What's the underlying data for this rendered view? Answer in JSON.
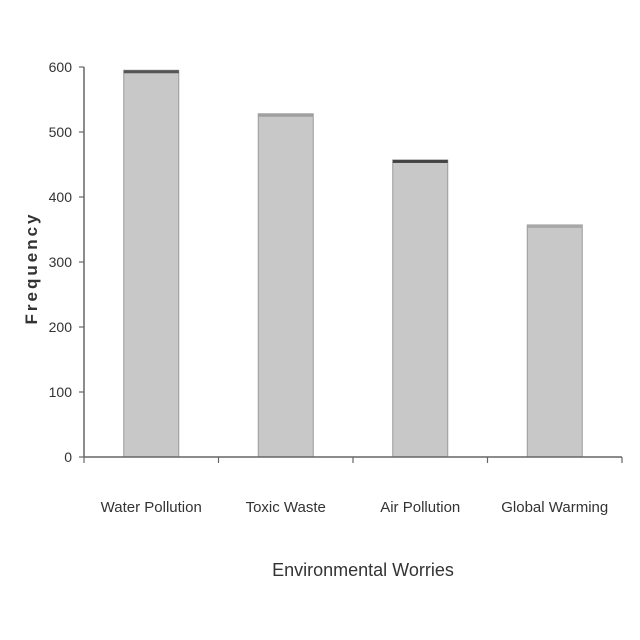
{
  "chart_data": {
    "type": "bar",
    "categories": [
      "Water Pollution",
      "Toxic Waste",
      "Air Pollution",
      "Global Warming"
    ],
    "values": [
      595,
      528,
      457,
      357
    ],
    "title": "",
    "xlabel": "Environmental Worries",
    "ylabel": "Frequency",
    "ylim": [
      0,
      600
    ],
    "yticks": [
      0,
      100,
      200,
      300,
      400,
      500,
      600
    ],
    "grid": false,
    "legend": "none",
    "colors": {
      "bar_fill": "#c8c8c8",
      "bar_stroke": "#9a9a9a",
      "bar_top": [
        "#555555",
        "#a0a0a0",
        "#444444",
        "#a8a8a8"
      ],
      "axis": "#666666",
      "text": "#333333"
    }
  }
}
